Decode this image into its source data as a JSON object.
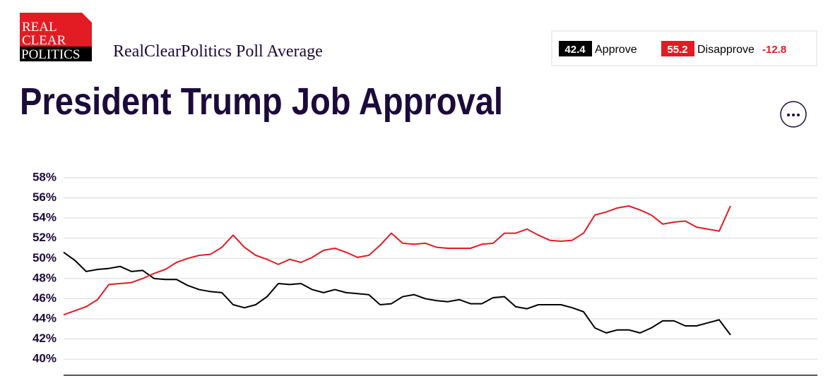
{
  "logo": {
    "lines": [
      "REAL",
      "CLEAR",
      "POLITICS"
    ]
  },
  "subtitle": "RealClearPolitics Poll Average",
  "summary": {
    "approve_value": "42.4",
    "approve_label": "Approve",
    "disapprove_value": "55.2",
    "disapprove_label": "Disapprove",
    "spread": "-12.8"
  },
  "chart_data": {
    "type": "line",
    "title": "President Trump Job Approval",
    "ylim": [
      38.4,
      58
    ],
    "yticks": [
      {
        "value": 40,
        "label": "40%"
      },
      {
        "value": 42,
        "label": "42%"
      },
      {
        "value": 44,
        "label": "44%"
      },
      {
        "value": 46,
        "label": "46%"
      },
      {
        "value": 48,
        "label": "48%"
      },
      {
        "value": 50,
        "label": "50%"
      },
      {
        "value": 52,
        "label": "52%"
      },
      {
        "value": 54,
        "label": "54%"
      },
      {
        "value": 56,
        "label": "56%"
      },
      {
        "value": 58,
        "label": "58%"
      }
    ],
    "grid": true,
    "series": [
      {
        "name": "Approve",
        "color": "#000000",
        "values": [
          50.6,
          49.8,
          48.7,
          48.9,
          49.0,
          49.2,
          48.7,
          48.8,
          48.0,
          47.9,
          47.9,
          47.3,
          46.9,
          46.7,
          46.6,
          45.4,
          45.1,
          45.4,
          46.2,
          47.5,
          47.4,
          47.5,
          46.9,
          46.6,
          46.9,
          46.6,
          46.5,
          46.4,
          45.4,
          45.5,
          46.2,
          46.4,
          46.0,
          45.8,
          45.7,
          45.9,
          45.5,
          45.5,
          46.1,
          46.2,
          45.2,
          45.0,
          45.4,
          45.4,
          45.4,
          45.1,
          44.7,
          43.1,
          42.6,
          42.9,
          42.9,
          42.6,
          43.1,
          43.8,
          43.8,
          43.3,
          43.3,
          43.6,
          43.9,
          42.4
        ]
      },
      {
        "name": "Disapprove",
        "color": "#e31b23",
        "values": [
          44.4,
          44.8,
          45.2,
          45.9,
          47.4,
          47.5,
          47.6,
          48.0,
          48.5,
          48.9,
          49.6,
          50.0,
          50.3,
          50.4,
          51.1,
          52.3,
          51.1,
          50.3,
          49.9,
          49.4,
          49.9,
          49.6,
          50.1,
          50.8,
          51.0,
          50.6,
          50.1,
          50.3,
          51.3,
          52.5,
          51.5,
          51.4,
          51.5,
          51.1,
          51.0,
          51.0,
          51.0,
          51.4,
          51.5,
          52.5,
          52.5,
          52.9,
          52.3,
          51.8,
          51.7,
          51.8,
          52.5,
          54.3,
          54.6,
          55.0,
          55.2,
          54.8,
          54.3,
          53.4,
          53.6,
          53.7,
          53.1,
          52.9,
          52.7,
          55.2
        ]
      }
    ]
  }
}
